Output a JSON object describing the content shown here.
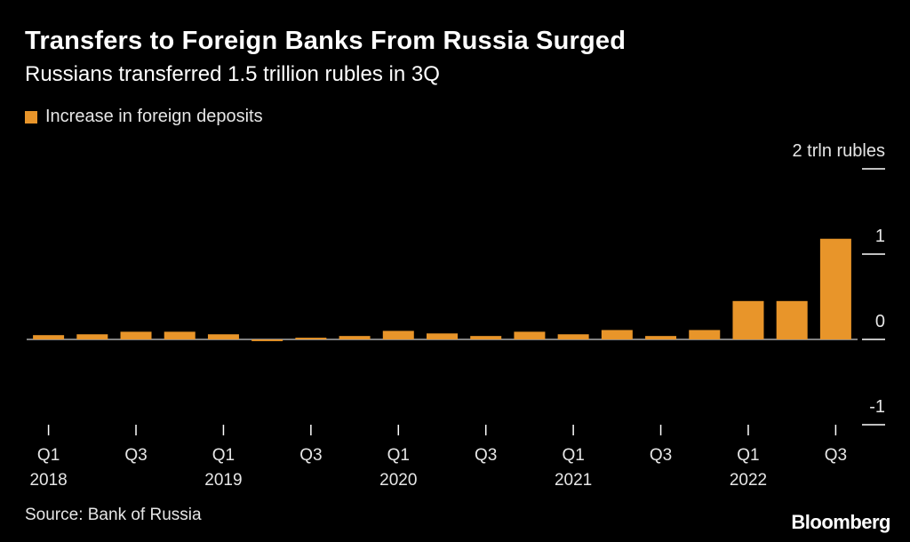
{
  "chart_data": {
    "type": "bar",
    "title": "Transfers to Foreign Banks From Russia Surged",
    "subtitle": "Russians transferred 1.5 trillion rubles in 3Q",
    "legend": [
      "Increase in foreign deposits"
    ],
    "series": [
      {
        "name": "Increase in foreign deposits",
        "color": "#e8952a",
        "values": [
          0.05,
          0.06,
          0.09,
          0.09,
          0.06,
          -0.02,
          0.02,
          0.04,
          0.1,
          0.07,
          0.04,
          0.09,
          0.06,
          0.11,
          0.04,
          0.11,
          0.45,
          0.45,
          1.18
        ]
      }
    ],
    "categories": [
      "Q1 2018",
      "Q2 2018",
      "Q3 2018",
      "Q4 2018",
      "Q1 2019",
      "Q2 2019",
      "Q3 2019",
      "Q4 2019",
      "Q1 2020",
      "Q2 2020",
      "Q3 2020",
      "Q4 2020",
      "Q1 2021",
      "Q2 2021",
      "Q3 2021",
      "Q4 2021",
      "Q1 2022",
      "Q2 2022",
      "Q3 2022"
    ],
    "x_tick_labels": [
      {
        "index": 0,
        "line1": "Q1",
        "line2": "2018"
      },
      {
        "index": 2,
        "line1": "Q3",
        "line2": ""
      },
      {
        "index": 4,
        "line1": "Q1",
        "line2": "2019"
      },
      {
        "index": 6,
        "line1": "Q3",
        "line2": ""
      },
      {
        "index": 8,
        "line1": "Q1",
        "line2": "2020"
      },
      {
        "index": 10,
        "line1": "Q3",
        "line2": ""
      },
      {
        "index": 12,
        "line1": "Q1",
        "line2": "2021"
      },
      {
        "index": 14,
        "line1": "Q3",
        "line2": ""
      },
      {
        "index": 16,
        "line1": "Q1",
        "line2": "2022"
      },
      {
        "index": 18,
        "line1": "Q3",
        "line2": ""
      }
    ],
    "y_ticks": [
      {
        "value": 2,
        "label": "2 trln rubles"
      },
      {
        "value": 1,
        "label": "1"
      },
      {
        "value": 0,
        "label": "0"
      },
      {
        "value": -1,
        "label": "-1"
      }
    ],
    "ylim": [
      -1,
      2
    ],
    "source": "Source: Bank of Russia"
  },
  "brand": "Bloomberg"
}
